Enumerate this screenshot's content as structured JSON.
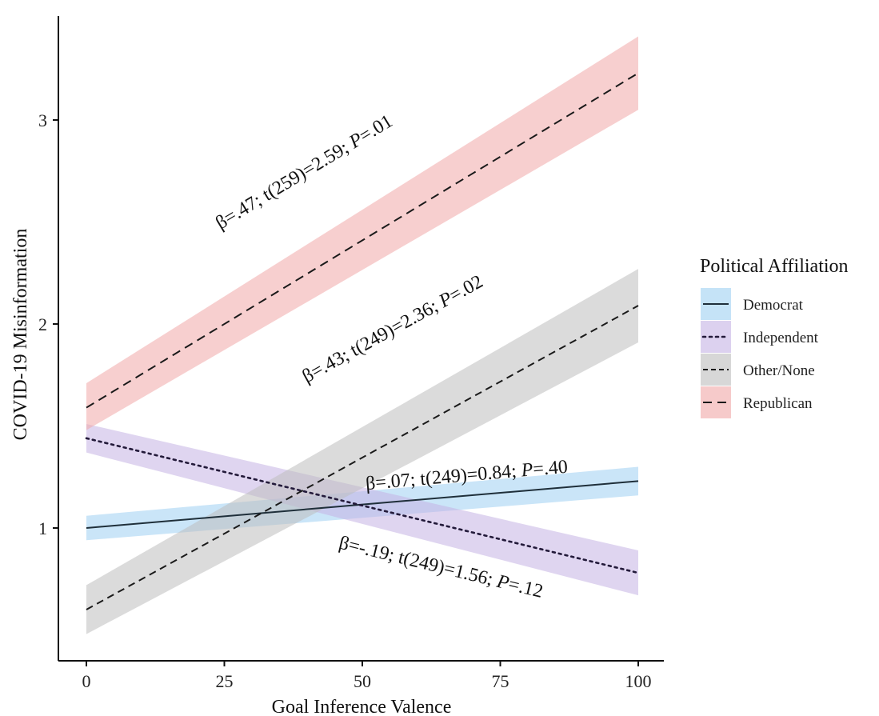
{
  "chart_data": {
    "type": "line",
    "title": "",
    "xlabel": "Goal Inference Valence",
    "ylabel": "COVID-19 Misinformation",
    "xlim": [
      -10,
      105
    ],
    "ylim": [
      0.33,
      3.55
    ],
    "x_ticks": [
      0,
      25,
      50,
      75,
      100
    ],
    "y_ticks": [
      1,
      2,
      3
    ],
    "grid": false,
    "legend": {
      "title": "Political Affiliation",
      "position": "right"
    },
    "series": [
      {
        "name": "Democrat",
        "color": "#1f2f3a",
        "band_color": "#9fd0f2",
        "linestyle": "solid",
        "x": [
          0,
          100
        ],
        "y": [
          1.0,
          1.23
        ],
        "ci_lower": [
          0.94,
          1.16
        ],
        "ci_upper": [
          1.06,
          1.3
        ]
      },
      {
        "name": "Independent",
        "color": "#231a3a",
        "band_color": "#c4b2e4",
        "linestyle": "dotted",
        "x": [
          0,
          100
        ],
        "y": [
          1.44,
          0.78
        ],
        "ci_lower": [
          1.37,
          0.67
        ],
        "ci_upper": [
          1.51,
          0.89
        ]
      },
      {
        "name": "Other/None",
        "color": "#1a1a1a",
        "band_color": "#bdbdbd",
        "linestyle": "dashed",
        "x": [
          0,
          100
        ],
        "y": [
          0.6,
          2.09
        ],
        "ci_lower": [
          0.48,
          1.91
        ],
        "ci_upper": [
          0.72,
          2.27
        ]
      },
      {
        "name": "Republican",
        "color": "#1a1a1a",
        "band_color": "#f0a7a7",
        "linestyle": "longdash",
        "x": [
          0,
          100
        ],
        "y": [
          1.59,
          3.23
        ],
        "ci_lower": [
          1.48,
          3.05
        ],
        "ci_upper": [
          1.71,
          3.41
        ]
      }
    ],
    "annotations": [
      {
        "id": "rep",
        "series": "Republican",
        "x": 40,
        "y": 2.72,
        "angle_x0": 0,
        "angle_x1": 100,
        "parts": [
          {
            "t": "β=.47; t(259)=2.59; "
          },
          {
            "t": "P",
            "italic": true
          },
          {
            "t": "=.01"
          }
        ]
      },
      {
        "id": "oth",
        "series": "Other/None",
        "x": 56,
        "y": 1.95,
        "angle_x0": 0,
        "angle_x1": 100,
        "parts": [
          {
            "t": "β=.43; t(249)=2.36; "
          },
          {
            "t": "P",
            "italic": true
          },
          {
            "t": "=.02"
          }
        ]
      },
      {
        "id": "dem",
        "series": "Democrat",
        "x": 69,
        "y": 1.23,
        "angle_x0": 0,
        "angle_x1": 100,
        "parts": [
          {
            "t": "β=.07; t(249)=0.84; "
          },
          {
            "t": "P",
            "italic": true
          },
          {
            "t": "=.40"
          }
        ]
      },
      {
        "id": "ind",
        "series": "Independent",
        "x": 64,
        "y": 0.78,
        "angle_x0": 0,
        "angle_x1": 100,
        "parts": [
          {
            "t": "β=-.19; t(249)=1.56; "
          },
          {
            "t": "P",
            "italic": true
          },
          {
            "t": "=.12"
          }
        ]
      }
    ]
  }
}
